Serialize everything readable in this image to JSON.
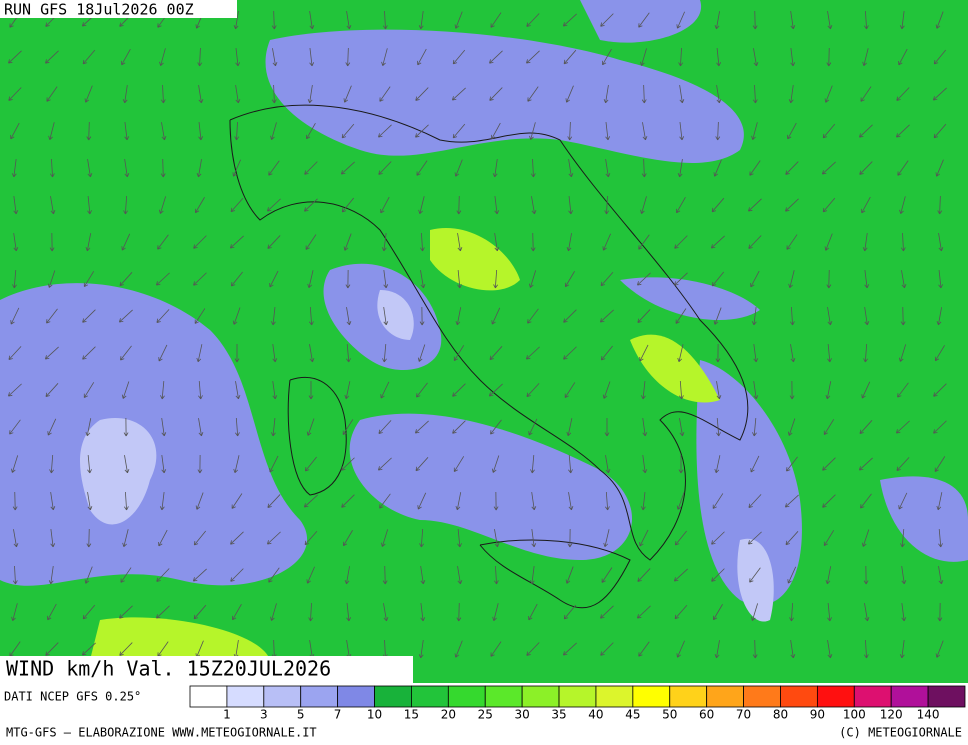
{
  "header": {
    "run": "RUN GFS 18Jul2026 00Z",
    "valid": "WIND km/h Val. 15Z20JUL2026",
    "source": "DATI NCEP GFS 0.25°"
  },
  "legend": {
    "levels": [
      1,
      3,
      5,
      7,
      10,
      15,
      20,
      25,
      30,
      35,
      40,
      45,
      50,
      60,
      70,
      80,
      90,
      100,
      120,
      140
    ],
    "colors": [
      "#ffffff",
      "#d6dcff",
      "#b8bff6",
      "#9ba4f0",
      "#7f88e6",
      "#18b23a",
      "#22c43a",
      "#35d92e",
      "#5be82a",
      "#8cf028",
      "#b6f52a",
      "#dcf52c",
      "#ffff00",
      "#ffd21a",
      "#ffa51a",
      "#ff7a1a",
      "#ff4a10",
      "#ff1010",
      "#dd1070",
      "#b0109a",
      "#6e1060"
    ]
  },
  "footer": {
    "left": "MTG-GFS — ELABORAZIONE WWW.METEOGIORNALE.IT",
    "right": "(C) METEOGIORNALE"
  }
}
